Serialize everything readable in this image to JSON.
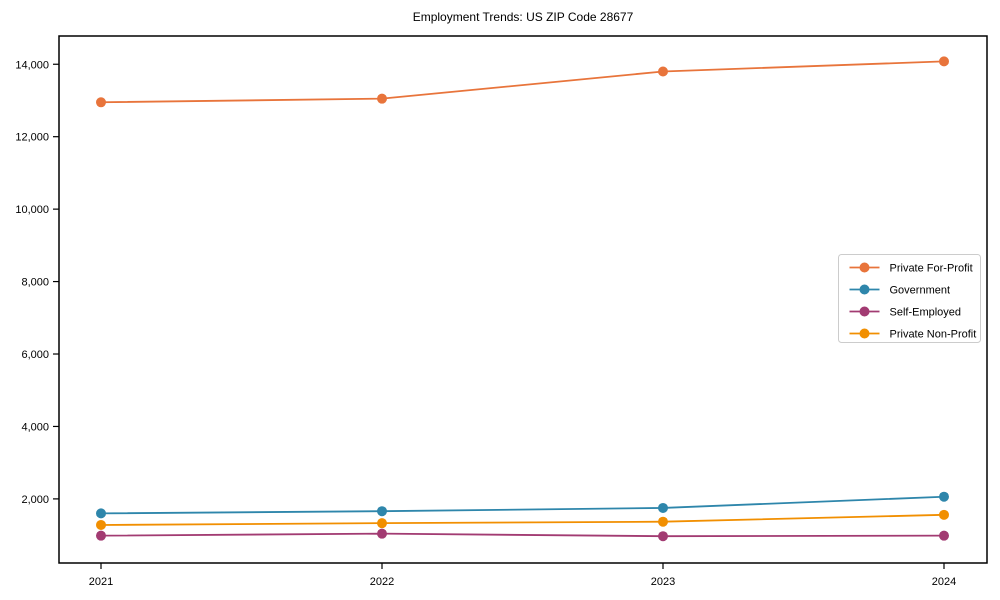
{
  "figure": {
    "background_color": "#ffffff",
    "axis_color": "#000000",
    "text_color": "#000000"
  },
  "chart_data": {
    "type": "line",
    "title": "Employment Trends: US ZIP Code 28677",
    "xlabel": "",
    "ylabel": "",
    "x_categories": [
      "2021",
      "2022",
      "2023",
      "2024"
    ],
    "series": [
      {
        "name": "Private For-Profit",
        "color": "#e8743b",
        "values": [
          12950,
          13050,
          13800,
          14080
        ]
      },
      {
        "name": "Government",
        "color": "#2e86ab",
        "values": [
          1600,
          1660,
          1750,
          2060
        ]
      },
      {
        "name": "Self-Employed",
        "color": "#a23b72",
        "values": [
          985,
          1040,
          970,
          985
        ]
      },
      {
        "name": "Private Non-Profit",
        "color": "#f18f01",
        "values": [
          1280,
          1330,
          1370,
          1560
        ]
      }
    ],
    "ylim": [
      230,
      14780
    ],
    "yticks": [
      2000,
      4000,
      6000,
      8000,
      10000,
      12000,
      14000
    ],
    "ytick_format": "comma",
    "grid": false,
    "marker": "circle",
    "legend": {
      "position": "right-middle",
      "border_color": "#cccccc",
      "background_color": "#ffffff"
    }
  }
}
